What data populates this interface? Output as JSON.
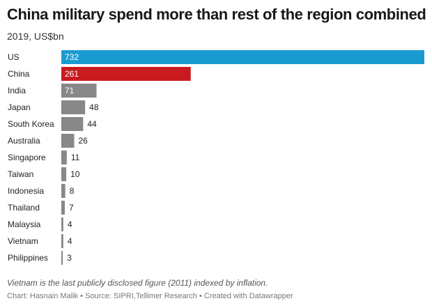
{
  "header": {
    "title": "China military spend more than rest of the region combined",
    "subtitle": "2019, US$bn"
  },
  "footer": {
    "note": "Vietnam is the last publicly disclosed figure (2011) indexed by inflation.",
    "credit_chart": "Chart: Hasnain Malik",
    "credit_source": "Source: SIPRI,Tellimer Research",
    "credit_tool": "Created with Datawrapper",
    "separator": "•"
  },
  "colors": {
    "us": "#1a9bd0",
    "china": "#c91b1f",
    "other": "#888888"
  },
  "chart_data": {
    "type": "bar",
    "orientation": "horizontal",
    "title": "China military spend more than rest of the region combined",
    "subtitle": "2019, US$bn",
    "xlabel": "",
    "ylabel": "",
    "xlim": [
      0,
      732
    ],
    "grid": false,
    "legend": "none",
    "categories": [
      "US",
      "China",
      "India",
      "Japan",
      "South Korea",
      "Australia",
      "Singapore",
      "Taiwan",
      "Indonesia",
      "Thailand",
      "Malaysia",
      "Vietnam",
      "Philippines"
    ],
    "values": [
      732,
      261,
      71,
      48,
      44,
      26,
      11,
      10,
      8,
      7,
      4,
      4,
      3
    ],
    "value_labels": [
      "732",
      "261",
      "71",
      "48",
      "44",
      "26",
      "11",
      "10",
      "8",
      "7",
      "4",
      "4",
      "3"
    ],
    "bar_colors": [
      "#1a9bd0",
      "#c91b1f",
      "#888888",
      "#888888",
      "#888888",
      "#888888",
      "#888888",
      "#888888",
      "#888888",
      "#888888",
      "#888888",
      "#888888",
      "#888888"
    ]
  }
}
